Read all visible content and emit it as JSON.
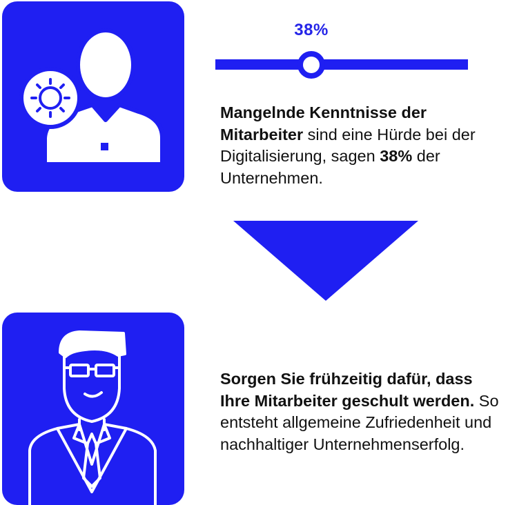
{
  "meter": {
    "label": "38%",
    "value": 0.38
  },
  "statement": {
    "bold": "Mangelnde Kenntnisse der Mitarbeiter",
    "middle": " sind eine Hürde bei der Digitalisierung, sagen ",
    "bold_value": "38%",
    "end": " der Unternehmen."
  },
  "recommendation": {
    "bold": "Sorgen Sie frühzeitig dafür, dass Ihre Mitarbeiter geschult werden.",
    "rest": " So entsteht allgemeine Zufriedenheit und nachhaltiger Unternehmenserfolg."
  },
  "icons": {
    "top": "worried-employee-icon",
    "arrow": "down-arrow-icon",
    "bottom": "trained-employee-icon"
  },
  "colors": {
    "accent": "#1f1ff2",
    "text": "#111111",
    "background": "#ffffff"
  }
}
